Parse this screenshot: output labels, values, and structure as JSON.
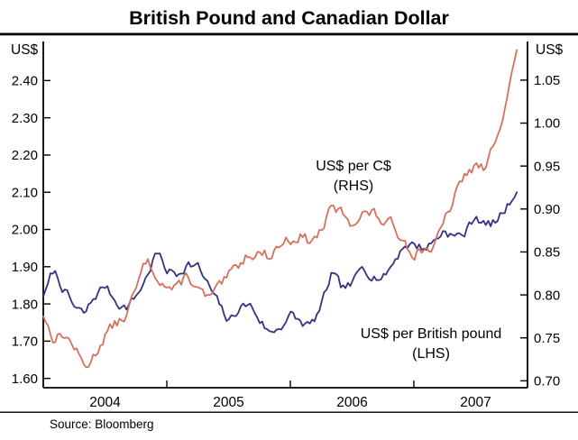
{
  "title": "British Pound and Canadian Dollar",
  "axis_units": {
    "left": "US$",
    "right": "US$"
  },
  "source": "Source: Bloomberg",
  "colors": {
    "gbp": "#33337f",
    "cad": "#d4715c",
    "axis": "#000000",
    "background": "#ffffff"
  },
  "chart_data": {
    "type": "line",
    "title": "British Pound and Canadian Dollar",
    "x_range": [
      2004.0,
      2007.92
    ],
    "x_tick_labels": [
      "2004",
      "2005",
      "2006",
      "2007"
    ],
    "x_tick_centers": [
      2004.5,
      2005.5,
      2006.5,
      2007.5
    ],
    "x_boundary_ticks": [
      2005,
      2006,
      2007
    ],
    "left_axis": {
      "label": "US$",
      "plot_min": 1.575,
      "plot_max": 2.505,
      "ticks": [
        1.6,
        1.7,
        1.8,
        1.9,
        2.0,
        2.1,
        2.2,
        2.3,
        2.4
      ]
    },
    "right_axis": {
      "label": "US$",
      "plot_min": 0.692,
      "plot_max": 1.095,
      "ticks": [
        0.7,
        0.75,
        0.8,
        0.85,
        0.9,
        0.95,
        1.0,
        1.05
      ]
    },
    "annotations": {
      "cad": [
        "US$ per C$",
        "(RHS)"
      ],
      "gbp": [
        "US$ per British pound",
        "(LHS)"
      ]
    },
    "series": [
      {
        "name": "US$ per British pound (LHS)",
        "axis": "left",
        "color_key": "gbp",
        "x_start": 2004.0,
        "x_step_months": 1,
        "values": [
          1.82,
          1.89,
          1.84,
          1.79,
          1.77,
          1.82,
          1.85,
          1.81,
          1.79,
          1.82,
          1.87,
          1.94,
          1.89,
          1.88,
          1.91,
          1.9,
          1.85,
          1.8,
          1.75,
          1.79,
          1.8,
          1.76,
          1.72,
          1.74,
          1.77,
          1.75,
          1.74,
          1.79,
          1.88,
          1.84,
          1.85,
          1.9,
          1.88,
          1.87,
          1.91,
          1.96,
          1.96,
          1.95,
          1.97,
          2.0,
          1.98,
          1.99,
          2.04,
          2.01,
          2.02,
          2.06,
          2.1
        ],
        "seed": 7,
        "noise": 0.012
      },
      {
        "name": "US$ per C$ (RHS)",
        "axis": "right",
        "color_key": "cad",
        "x_start": 2004.0,
        "x_step_months": 1,
        "values": [
          0.775,
          0.75,
          0.755,
          0.74,
          0.715,
          0.73,
          0.755,
          0.765,
          0.775,
          0.805,
          0.84,
          0.825,
          0.81,
          0.805,
          0.825,
          0.805,
          0.795,
          0.805,
          0.82,
          0.835,
          0.85,
          0.85,
          0.845,
          0.86,
          0.865,
          0.87,
          0.86,
          0.875,
          0.9,
          0.895,
          0.885,
          0.895,
          0.895,
          0.885,
          0.88,
          0.865,
          0.85,
          0.855,
          0.855,
          0.885,
          0.915,
          0.94,
          0.95,
          0.945,
          0.985,
          1.03,
          1.085
        ],
        "seed": 13,
        "noise": 0.006
      }
    ]
  }
}
